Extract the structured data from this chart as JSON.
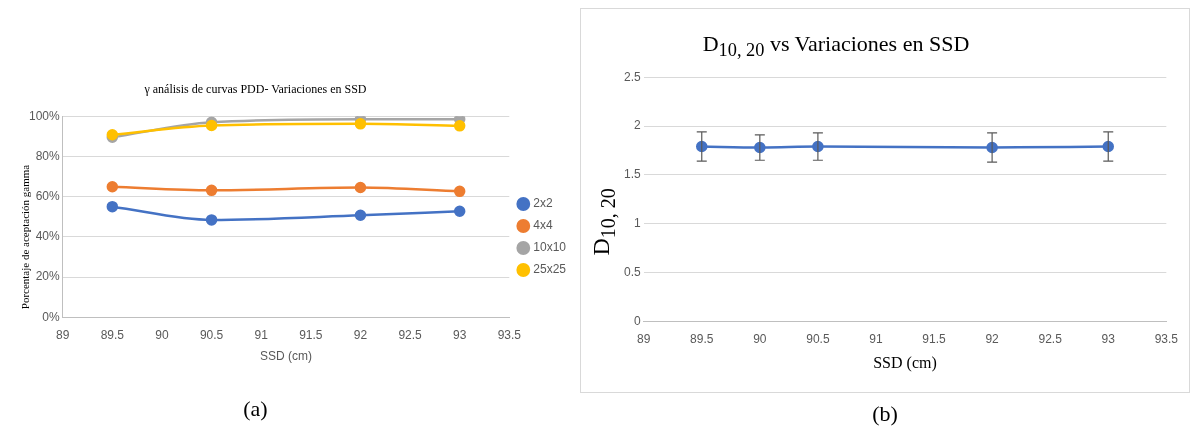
{
  "chart_data": [
    {
      "type": "line",
      "title": "γ análisis de curvas PDD- Variaciones en SSD",
      "xlabel": "SSD (cm)",
      "ylabel": "Porcentaje de aceptación gamma",
      "x": [
        89.5,
        90.5,
        92,
        93
      ],
      "xlim": [
        89,
        93.5
      ],
      "xticks": [
        89,
        89.5,
        90,
        90.5,
        91,
        91.5,
        92,
        92.5,
        93,
        93.5
      ],
      "ylim": [
        0,
        100
      ],
      "yticks": [
        {
          "value": 0,
          "label": "0%"
        },
        {
          "value": 20,
          "label": "20%"
        },
        {
          "value": 40,
          "label": "40%"
        },
        {
          "value": 60,
          "label": "60%"
        },
        {
          "value": 80,
          "label": "80%"
        },
        {
          "value": 100,
          "label": "100%"
        }
      ],
      "grid": "y",
      "legend": "right",
      "marker": "circle",
      "line_style": "solid",
      "series": [
        {
          "name": "2x2",
          "color": "#4472c4",
          "values": [
            55.0,
            48.4,
            50.7,
            52.7
          ]
        },
        {
          "name": "4x4",
          "color": "#ed7d31",
          "values": [
            64.9,
            63.1,
            64.5,
            62.6
          ]
        },
        {
          "name": "10x10",
          "color": "#a5a5a5",
          "values": [
            89.5,
            97.0,
            98.5,
            98.5
          ]
        },
        {
          "name": "25x25",
          "color": "#ffc000",
          "values": [
            90.8,
            95.4,
            96.2,
            95.2
          ]
        }
      ],
      "annotations": [
        "(a)"
      ]
    },
    {
      "type": "line",
      "title": "D$_{10, 20}$ vs Variaciones en  SSD",
      "xlabel": "SSD (cm)",
      "ylabel": "D$_{10, 20}$",
      "x": [
        89.5,
        90,
        90.5,
        92,
        93
      ],
      "xlim": [
        89,
        93.5
      ],
      "xticks": [
        89,
        89.5,
        90,
        90.5,
        91,
        91.5,
        92,
        92.5,
        93,
        93.5
      ],
      "ylim": [
        0,
        2.5
      ],
      "yticks": [
        0,
        0.5,
        1,
        1.5,
        2,
        2.5
      ],
      "grid": "y",
      "marker": "circle",
      "line_style": "solid",
      "series": [
        {
          "color": "#4472c4",
          "values": [
            1.79,
            1.78,
            1.79,
            1.78,
            1.79
          ],
          "errors": [
            0.15,
            0.13,
            0.14,
            0.15,
            0.15
          ]
        }
      ],
      "annotations": [
        "(b)"
      ]
    }
  ]
}
